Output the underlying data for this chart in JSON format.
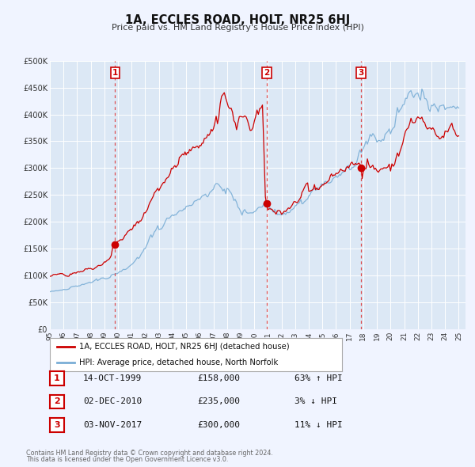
{
  "title": "1A, ECCLES ROAD, HOLT, NR25 6HJ",
  "subtitle": "Price paid vs. HM Land Registry's House Price Index (HPI)",
  "background_color": "#f0f4ff",
  "plot_bg_color": "#dce8f5",
  "grid_color": "#ffffff",
  "red_line_color": "#cc0000",
  "blue_line_color": "#7aaed6",
  "ylim": [
    0,
    500000
  ],
  "yticks": [
    0,
    50000,
    100000,
    150000,
    200000,
    250000,
    300000,
    350000,
    400000,
    450000,
    500000
  ],
  "ytick_labels": [
    "£0",
    "£50K",
    "£100K",
    "£150K",
    "£200K",
    "£250K",
    "£300K",
    "£350K",
    "£400K",
    "£450K",
    "£500K"
  ],
  "xlim_start": 1995.0,
  "xlim_end": 2025.5,
  "xticks": [
    1995,
    1996,
    1997,
    1998,
    1999,
    2000,
    2001,
    2002,
    2003,
    2004,
    2005,
    2006,
    2007,
    2008,
    2009,
    2010,
    2011,
    2012,
    2013,
    2014,
    2015,
    2016,
    2017,
    2018,
    2019,
    2020,
    2021,
    2022,
    2023,
    2024,
    2025
  ],
  "sale_events": [
    {
      "num": 1,
      "year": 1999.79,
      "price": 158000,
      "date": "14-OCT-1999",
      "pct": "63%",
      "dir": "↑"
    },
    {
      "num": 2,
      "year": 2010.92,
      "price": 235000,
      "date": "02-DEC-2010",
      "pct": "3%",
      "dir": "↓"
    },
    {
      "num": 3,
      "year": 2017.84,
      "price": 300000,
      "date": "03-NOV-2017",
      "pct": "11%",
      "dir": "↓"
    }
  ],
  "legend_red_label": "1A, ECCLES ROAD, HOLT, NR25 6HJ (detached house)",
  "legend_blue_label": "HPI: Average price, detached house, North Norfolk",
  "footer_line1": "Contains HM Land Registry data © Crown copyright and database right 2024.",
  "footer_line2": "This data is licensed under the Open Government Licence v3.0."
}
